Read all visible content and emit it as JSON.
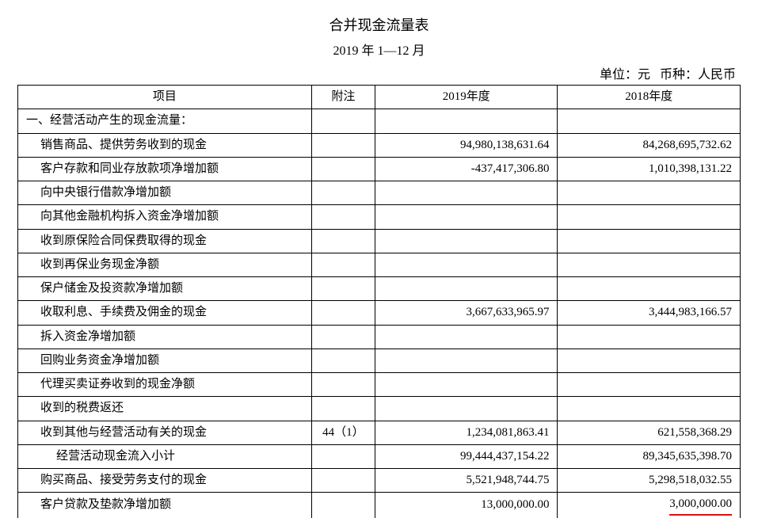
{
  "title": "合并现金流量表",
  "subtitle": "2019 年 1—12 月",
  "unit_line": "单位：元   币种：人民币",
  "headers": {
    "item": "项目",
    "note": "附注",
    "y2019": "2019年度",
    "y2018": "2018年度"
  },
  "rows": [
    {
      "item": "一、经营活动产生的现金流量：",
      "indent": 0,
      "note": "",
      "y2019": "",
      "y2018": ""
    },
    {
      "item": "销售商品、提供劳务收到的现金",
      "indent": 1,
      "note": "",
      "y2019": "94,980,138,631.64",
      "y2018": "84,268,695,732.62"
    },
    {
      "item": "客户存款和同业存放款项净增加额",
      "indent": 1,
      "note": "",
      "y2019": "-437,417,306.80",
      "y2018": "1,010,398,131.22"
    },
    {
      "item": "向中央银行借款净增加额",
      "indent": 1,
      "note": "",
      "y2019": "",
      "y2018": ""
    },
    {
      "item": "向其他金融机构拆入资金净增加额",
      "indent": 1,
      "note": "",
      "y2019": "",
      "y2018": ""
    },
    {
      "item": "收到原保险合同保费取得的现金",
      "indent": 1,
      "note": "",
      "y2019": "",
      "y2018": ""
    },
    {
      "item": "收到再保业务现金净额",
      "indent": 1,
      "note": "",
      "y2019": "",
      "y2018": ""
    },
    {
      "item": "保户储金及投资款净增加额",
      "indent": 1,
      "note": "",
      "y2019": "",
      "y2018": ""
    },
    {
      "item": "收取利息、手续费及佣金的现金",
      "indent": 1,
      "note": "",
      "y2019": "3,667,633,965.97",
      "y2018": "3,444,983,166.57"
    },
    {
      "item": "拆入资金净增加额",
      "indent": 1,
      "note": "",
      "y2019": "",
      "y2018": ""
    },
    {
      "item": "回购业务资金净增加额",
      "indent": 1,
      "note": "",
      "y2019": "",
      "y2018": ""
    },
    {
      "item": "代理买卖证券收到的现金净额",
      "indent": 1,
      "note": "",
      "y2019": "",
      "y2018": ""
    },
    {
      "item": "收到的税费返还",
      "indent": 1,
      "note": "",
      "y2019": "",
      "y2018": ""
    },
    {
      "item": "收到其他与经营活动有关的现金",
      "indent": 1,
      "note": "44（1）",
      "y2019": "1,234,081,863.41",
      "y2018": "621,558,368.29"
    },
    {
      "item": "经营活动现金流入小计",
      "indent": 2,
      "note": "",
      "y2019": "99,444,437,154.22",
      "y2018": "89,345,635,398.70"
    },
    {
      "item": "购买商品、接受劳务支付的现金",
      "indent": 1,
      "note": "",
      "y2019": "5,521,948,744.75",
      "y2018": "5,298,518,032.55"
    },
    {
      "item": "客户贷款及垫款净增加额",
      "indent": 1,
      "note": "",
      "y2019": "13,000,000.00",
      "y2018": "3,000,000.00",
      "cut": true,
      "red2018": true
    }
  ]
}
